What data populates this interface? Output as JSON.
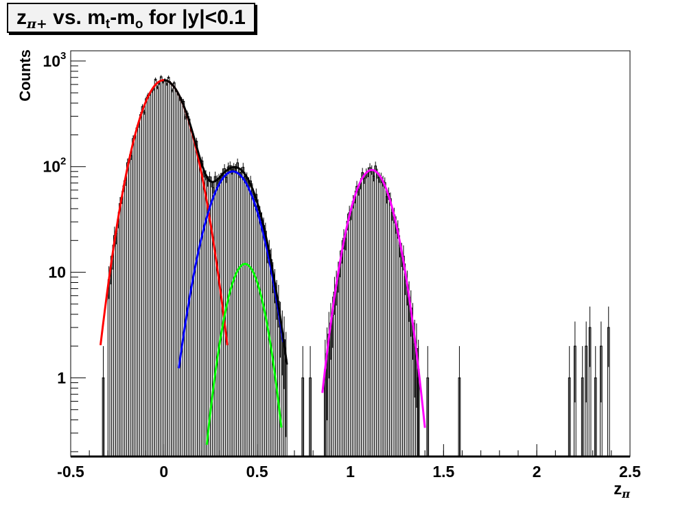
{
  "title": {
    "z": "z",
    "z_sub": "π+",
    "vs": " vs. m",
    "m1_sub": "t",
    "dash": "-m",
    "m2_sub": "o",
    "rest": " for |y|<0.1"
  },
  "chart_data": {
    "type": "line",
    "xlabel": "zπ",
    "ylabel": "Counts",
    "xlim": [
      -0.5,
      2.5
    ],
    "ylim_log": [
      0.18,
      1250
    ],
    "log_y": true,
    "grid": false,
    "x_ticks": [
      "-0.5",
      "0",
      "0.5",
      "1",
      "1.5",
      "2",
      "2.5"
    ],
    "y_ticks": [
      {
        "value": 1,
        "label": "1"
      },
      {
        "value": 10,
        "label": "10"
      },
      {
        "value": 100,
        "label": "10",
        "exp": "2"
      },
      {
        "value": 1000,
        "label": "10",
        "exp": "3"
      }
    ],
    "series": [
      {
        "color": "#ff0000",
        "kind": "gaussian",
        "amplitude": 660,
        "mean": 0.0,
        "sigma": 0.1,
        "range": [
          -0.34,
          0.34
        ]
      },
      {
        "color": "#0000ff",
        "kind": "gaussian",
        "amplitude": 90,
        "mean": 0.37,
        "sigma": 0.099,
        "range": [
          0.08,
          0.64
        ]
      },
      {
        "color": "#00ff00",
        "kind": "gaussian",
        "amplitude": 12,
        "mean": 0.435,
        "sigma": 0.073,
        "range": [
          0.23,
          0.63
        ]
      },
      {
        "color": "#ff00ff",
        "kind": "gaussian",
        "amplitude": 93,
        "mean": 1.115,
        "sigma": 0.085,
        "range": [
          0.85,
          1.4
        ]
      },
      {
        "color": "#000000",
        "kind": "sum_red_blue_green",
        "range": [
          0.0,
          0.66
        ]
      }
    ],
    "histogram": {
      "color": "#000000",
      "isolated_bins": [
        {
          "x": -0.33,
          "y": 1
        },
        {
          "x": 0.74,
          "y": 1
        },
        {
          "x": 0.78,
          "y": 1
        },
        {
          "x": 1.36,
          "y": 1
        },
        {
          "x": 1.41,
          "y": 1
        },
        {
          "x": 1.58,
          "y": 1
        },
        {
          "x": 2.17,
          "y": 1
        },
        {
          "x": 2.2,
          "y": 2
        },
        {
          "x": 2.24,
          "y": 1
        },
        {
          "x": 2.26,
          "y": 2
        },
        {
          "x": 2.28,
          "y": 3
        },
        {
          "x": 2.31,
          "y": 1
        },
        {
          "x": 2.34,
          "y": 2
        },
        {
          "x": 2.38,
          "y": 3
        }
      ]
    }
  }
}
